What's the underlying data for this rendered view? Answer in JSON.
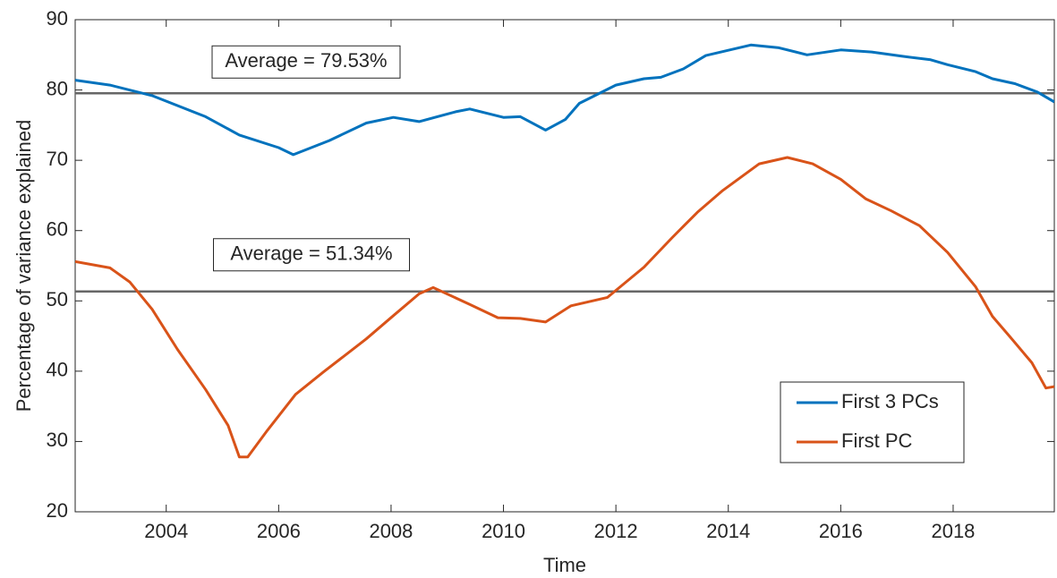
{
  "chart_data": {
    "type": "line",
    "xlabel": "Time",
    "ylabel": "Percentage of variance explained",
    "xlim": [
      2002.38,
      2019.8
    ],
    "xticks": [
      2004,
      2006,
      2008,
      2010,
      2012,
      2014,
      2016,
      2018
    ],
    "ylim": [
      20,
      90
    ],
    "yticks": [
      20,
      30,
      40,
      50,
      60,
      70,
      80,
      90
    ],
    "legend": "lower right",
    "hlines": [
      {
        "value": 79.53,
        "label": "Average = 79.53%",
        "color": "#666666"
      },
      {
        "value": 51.34,
        "label": "Average = 51.34%",
        "color": "#666666"
      }
    ],
    "series": [
      {
        "name": "First 3 PCs",
        "color": "#0072bd",
        "x": [
          2002.38,
          2003.0,
          2003.75,
          2004.7,
          2005.3,
          2006.0,
          2006.26,
          2006.9,
          2007.56,
          2008.04,
          2008.5,
          2009.15,
          2009.4,
          2010.0,
          2010.3,
          2010.75,
          2011.1,
          2011.35,
          2012.0,
          2012.5,
          2012.8,
          2013.2,
          2013.6,
          2014.4,
          2014.9,
          2015.4,
          2016.0,
          2016.55,
          2017.1,
          2017.6,
          2017.9,
          2018.4,
          2018.7,
          2019.1,
          2019.5,
          2019.8
        ],
        "values": [
          81.4,
          80.7,
          79.2,
          76.2,
          73.6,
          71.8,
          70.8,
          72.8,
          75.3,
          76.1,
          75.5,
          76.9,
          77.3,
          76.1,
          76.2,
          74.3,
          75.8,
          78.1,
          80.7,
          81.6,
          81.8,
          83.0,
          84.9,
          86.4,
          86.0,
          85.0,
          85.7,
          85.4,
          84.8,
          84.3,
          83.6,
          82.6,
          81.6,
          80.9,
          79.7,
          78.3
        ]
      },
      {
        "name": "First PC",
        "color": "#d95319",
        "x": [
          2002.38,
          2003.0,
          2003.35,
          2003.75,
          2004.2,
          2004.7,
          2005.1,
          2005.3,
          2005.45,
          2005.8,
          2006.3,
          2006.8,
          2007.56,
          2008.04,
          2008.5,
          2008.75,
          2009.4,
          2009.9,
          2010.3,
          2010.75,
          2011.2,
          2011.85,
          2012.5,
          2013.0,
          2013.45,
          2013.9,
          2014.55,
          2015.05,
          2015.5,
          2016.0,
          2016.45,
          2016.9,
          2017.4,
          2017.9,
          2018.4,
          2018.7,
          2019.0,
          2019.4,
          2019.65,
          2019.8
        ],
        "values": [
          55.6,
          54.7,
          52.7,
          48.8,
          43.1,
          37.4,
          32.3,
          27.8,
          27.8,
          31.6,
          36.7,
          39.9,
          44.6,
          47.9,
          51.0,
          51.9,
          49.5,
          47.6,
          47.5,
          47.0,
          49.3,
          50.5,
          54.8,
          59.0,
          62.6,
          65.7,
          69.5,
          70.4,
          69.5,
          67.3,
          64.5,
          62.8,
          60.7,
          56.9,
          52.0,
          47.8,
          45.0,
          41.2,
          37.6,
          37.8
        ]
      }
    ]
  }
}
